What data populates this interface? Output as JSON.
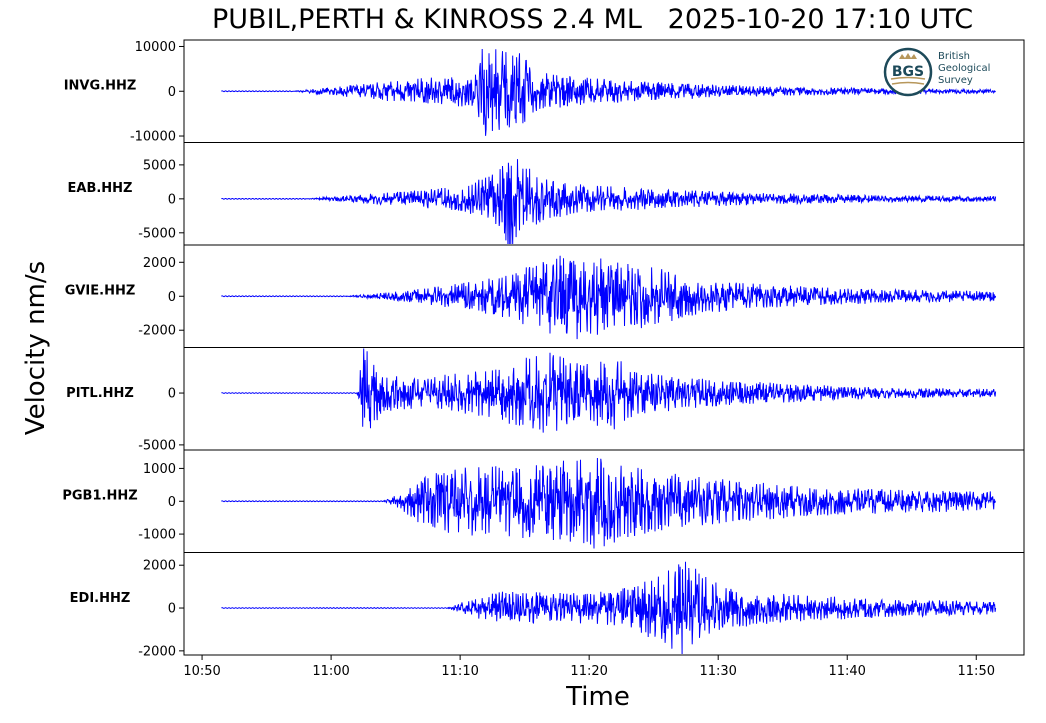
{
  "chart_data": {
    "type": "line",
    "title": "PUBIL,PERTH & KINROSS 2.4 ML   2025-10-20 17:10 UTC",
    "xlabel": "Time",
    "ylabel": "Velocity nm/s",
    "x_ticks": [
      "10:50",
      "11:00",
      "11:10",
      "11:20",
      "11:30",
      "11:40",
      "11:50"
    ],
    "x_start": "10:51:30",
    "x_end": "11:51:30",
    "line_color": "#0000ff",
    "logo": {
      "initials": "BGS",
      "lines": [
        "British",
        "Geological",
        "Survey"
      ],
      "color": "#1d4a5a",
      "accent": "#b7975b"
    },
    "panels": [
      {
        "station": "INVG.HHZ",
        "ylim": [
          -11000,
          11000
        ],
        "yticks": [
          10000,
          0,
          -10000
        ],
        "ytick_labels": [
          "10000",
          "0",
          "-10000"
        ],
        "onset": "10:57:00",
        "envelope": [
          [
            0,
            0
          ],
          [
            0.17,
            2800
          ],
          [
            0.26,
            3600
          ],
          [
            0.27,
            10500
          ],
          [
            0.28,
            10000
          ],
          [
            0.33,
            8500
          ],
          [
            0.34,
            5000
          ],
          [
            0.4,
            3200
          ],
          [
            0.5,
            2200
          ],
          [
            0.6,
            1500
          ],
          [
            0.7,
            1000
          ],
          [
            0.8,
            800
          ],
          [
            0.9,
            600
          ],
          [
            1.0,
            400
          ]
        ]
      },
      {
        "station": "EAB.HHZ",
        "ylim": [
          -6500,
          8000
        ],
        "yticks": [
          5000,
          0,
          -5000
        ],
        "ytick_labels": [
          "5000",
          "0",
          "-5000"
        ],
        "onset": "10:58:00",
        "envelope": [
          [
            0,
            0
          ],
          [
            0.15,
            1200
          ],
          [
            0.22,
            1800
          ],
          [
            0.25,
            2800
          ],
          [
            0.28,
            4200
          ],
          [
            0.3,
            8700
          ],
          [
            0.31,
            5500
          ],
          [
            0.35,
            3000
          ],
          [
            0.4,
            2200
          ],
          [
            0.45,
            1800
          ],
          [
            0.55,
            1300
          ],
          [
            0.65,
            900
          ],
          [
            0.75,
            700
          ],
          [
            0.85,
            500
          ],
          [
            1.0,
            400
          ]
        ]
      },
      {
        "station": "GVIE.HHZ",
        "ylim": [
          -2900,
          2900
        ],
        "yticks": [
          2000,
          0,
          -2000
        ],
        "ytick_labels": [
          "2000",
          "0",
          "-2000"
        ],
        "onset": "11:01:00",
        "envelope": [
          [
            0,
            0
          ],
          [
            0.1,
            350
          ],
          [
            0.2,
            900
          ],
          [
            0.25,
            1300
          ],
          [
            0.3,
            2100
          ],
          [
            0.35,
            2600
          ],
          [
            0.4,
            2200
          ],
          [
            0.45,
            2000
          ],
          [
            0.5,
            1500
          ],
          [
            0.55,
            1000
          ],
          [
            0.65,
            700
          ],
          [
            0.75,
            500
          ],
          [
            0.85,
            400
          ],
          [
            1.0,
            300
          ]
        ]
      },
      {
        "station": "PITL.HHZ",
        "ylim": [
          -5300,
          4200
        ],
        "yticks": [
          0,
          -5000
        ],
        "ytick_labels": [
          "0",
          "-5000"
        ],
        "onset": "11:02:00",
        "envelope": [
          [
            0,
            0
          ],
          [
            0.01,
            4800
          ],
          [
            0.04,
            1800
          ],
          [
            0.1,
            1500
          ],
          [
            0.2,
            2300
          ],
          [
            0.25,
            3200
          ],
          [
            0.3,
            4000
          ],
          [
            0.35,
            3000
          ],
          [
            0.4,
            3600
          ],
          [
            0.45,
            2000
          ],
          [
            0.55,
            1400
          ],
          [
            0.65,
            1000
          ],
          [
            0.75,
            700
          ],
          [
            0.85,
            500
          ],
          [
            1.0,
            400
          ]
        ]
      },
      {
        "station": "PGB1.HHZ",
        "ylim": [
          -1500,
          1500
        ],
        "yticks": [
          1000,
          0,
          -1000
        ],
        "ytick_labels": [
          "1000",
          "0",
          "-1000"
        ],
        "onset": "11:04:00",
        "envelope": [
          [
            0,
            0
          ],
          [
            0.03,
            250
          ],
          [
            0.06,
            700
          ],
          [
            0.1,
            1000
          ],
          [
            0.2,
            1100
          ],
          [
            0.28,
            1200
          ],
          [
            0.35,
            1500
          ],
          [
            0.4,
            1100
          ],
          [
            0.5,
            800
          ],
          [
            0.6,
            600
          ],
          [
            0.7,
            450
          ],
          [
            0.85,
            350
          ],
          [
            1.0,
            300
          ]
        ]
      },
      {
        "station": "EDI.HHZ",
        "ylim": [
          -2100,
          2500
        ],
        "yticks": [
          2000,
          0,
          -2000
        ],
        "ytick_labels": [
          "2000",
          "0",
          "-2000"
        ],
        "onset": "11:09:00",
        "envelope": [
          [
            0,
            0
          ],
          [
            0.03,
            300
          ],
          [
            0.1,
            800
          ],
          [
            0.2,
            700
          ],
          [
            0.3,
            800
          ],
          [
            0.35,
            1200
          ],
          [
            0.4,
            1800
          ],
          [
            0.43,
            2300
          ],
          [
            0.46,
            1800
          ],
          [
            0.5,
            1000
          ],
          [
            0.6,
            700
          ],
          [
            0.7,
            550
          ],
          [
            0.85,
            400
          ],
          [
            1.0,
            300
          ]
        ]
      }
    ]
  }
}
